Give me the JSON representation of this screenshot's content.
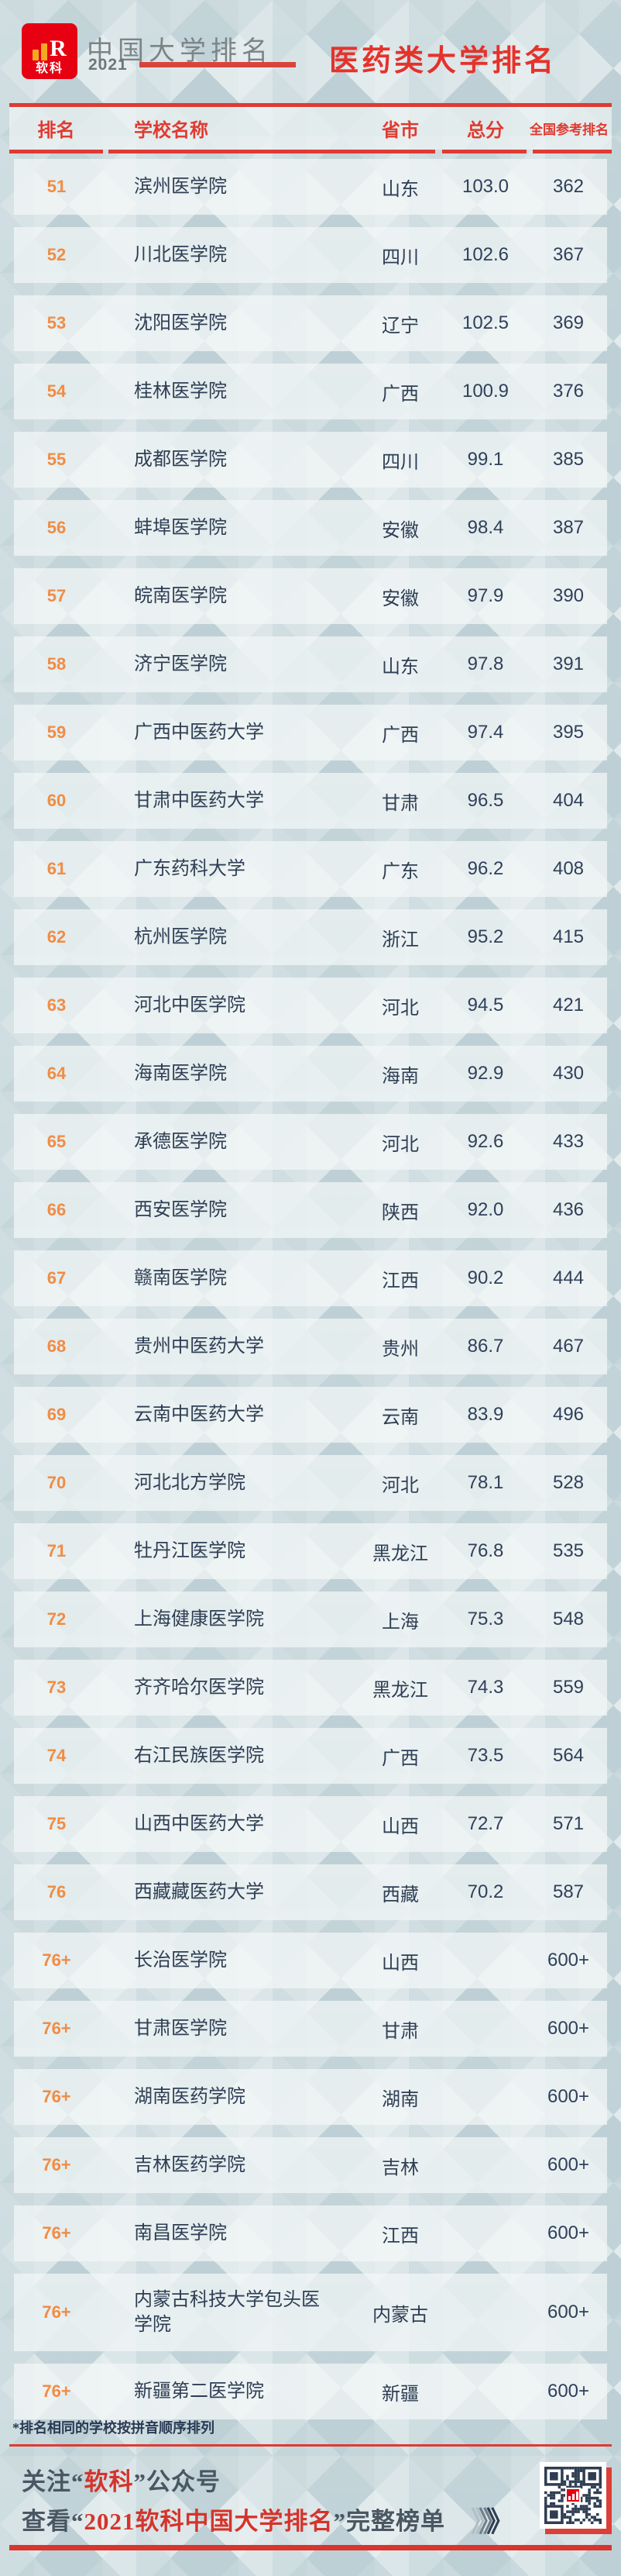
{
  "brand": {
    "logo_text": "软科",
    "logo_r": "R",
    "title": "中国大学排名",
    "year": "2021"
  },
  "page_title": "医药类大学排名",
  "table": {
    "headers": {
      "rank": "排名",
      "school": "学校名称",
      "province": "省市",
      "score": "总分",
      "national_rank": "全国参考排名"
    },
    "rows": [
      {
        "rank": "51",
        "school": "滨州医学院",
        "province": "山东",
        "score": "103.0",
        "national_rank": "362"
      },
      {
        "rank": "52",
        "school": "川北医学院",
        "province": "四川",
        "score": "102.6",
        "national_rank": "367"
      },
      {
        "rank": "53",
        "school": "沈阳医学院",
        "province": "辽宁",
        "score": "102.5",
        "national_rank": "369"
      },
      {
        "rank": "54",
        "school": "桂林医学院",
        "province": "广西",
        "score": "100.9",
        "national_rank": "376"
      },
      {
        "rank": "55",
        "school": "成都医学院",
        "province": "四川",
        "score": "99.1",
        "national_rank": "385"
      },
      {
        "rank": "56",
        "school": "蚌埠医学院",
        "province": "安徽",
        "score": "98.4",
        "national_rank": "387"
      },
      {
        "rank": "57",
        "school": "皖南医学院",
        "province": "安徽",
        "score": "97.9",
        "national_rank": "390"
      },
      {
        "rank": "58",
        "school": "济宁医学院",
        "province": "山东",
        "score": "97.8",
        "national_rank": "391"
      },
      {
        "rank": "59",
        "school": "广西中医药大学",
        "province": "广西",
        "score": "97.4",
        "national_rank": "395"
      },
      {
        "rank": "60",
        "school": "甘肃中医药大学",
        "province": "甘肃",
        "score": "96.5",
        "national_rank": "404"
      },
      {
        "rank": "61",
        "school": "广东药科大学",
        "province": "广东",
        "score": "96.2",
        "national_rank": "408"
      },
      {
        "rank": "62",
        "school": "杭州医学院",
        "province": "浙江",
        "score": "95.2",
        "national_rank": "415"
      },
      {
        "rank": "63",
        "school": "河北中医学院",
        "province": "河北",
        "score": "94.5",
        "national_rank": "421"
      },
      {
        "rank": "64",
        "school": "海南医学院",
        "province": "海南",
        "score": "92.9",
        "national_rank": "430"
      },
      {
        "rank": "65",
        "school": "承德医学院",
        "province": "河北",
        "score": "92.6",
        "national_rank": "433"
      },
      {
        "rank": "66",
        "school": "西安医学院",
        "province": "陕西",
        "score": "92.0",
        "national_rank": "436"
      },
      {
        "rank": "67",
        "school": "赣南医学院",
        "province": "江西",
        "score": "90.2",
        "national_rank": "444"
      },
      {
        "rank": "68",
        "school": "贵州中医药大学",
        "province": "贵州",
        "score": "86.7",
        "national_rank": "467"
      },
      {
        "rank": "69",
        "school": "云南中医药大学",
        "province": "云南",
        "score": "83.9",
        "national_rank": "496"
      },
      {
        "rank": "70",
        "school": "河北北方学院",
        "province": "河北",
        "score": "78.1",
        "national_rank": "528"
      },
      {
        "rank": "71",
        "school": "牡丹江医学院",
        "province": "黑龙江",
        "score": "76.8",
        "national_rank": "535"
      },
      {
        "rank": "72",
        "school": "上海健康医学院",
        "province": "上海",
        "score": "75.3",
        "national_rank": "548"
      },
      {
        "rank": "73",
        "school": "齐齐哈尔医学院",
        "province": "黑龙江",
        "score": "74.3",
        "national_rank": "559"
      },
      {
        "rank": "74",
        "school": "右江民族医学院",
        "province": "广西",
        "score": "73.5",
        "national_rank": "564"
      },
      {
        "rank": "75",
        "school": "山西中医药大学",
        "province": "山西",
        "score": "72.7",
        "national_rank": "571"
      },
      {
        "rank": "76",
        "school": "西藏藏医药大学",
        "province": "西藏",
        "score": "70.2",
        "national_rank": "587"
      },
      {
        "rank": "76+",
        "school": "长治医学院",
        "province": "山西",
        "score": "",
        "national_rank": "600+"
      },
      {
        "rank": "76+",
        "school": "甘肃医学院",
        "province": "甘肃",
        "score": "",
        "national_rank": "600+"
      },
      {
        "rank": "76+",
        "school": "湖南医药学院",
        "province": "湖南",
        "score": "",
        "national_rank": "600+"
      },
      {
        "rank": "76+",
        "school": "吉林医药学院",
        "province": "吉林",
        "score": "",
        "national_rank": "600+"
      },
      {
        "rank": "76+",
        "school": "南昌医学院",
        "province": "江西",
        "score": "",
        "national_rank": "600+"
      },
      {
        "rank": "76+",
        "school": "内蒙古科技大学包头医学院",
        "province": "内蒙古",
        "score": "",
        "national_rank": "600+"
      },
      {
        "rank": "76+",
        "school": "新疆第二医学院",
        "province": "新疆",
        "score": "",
        "national_rank": "600+"
      }
    ]
  },
  "footnote": "*排名相同的学校按拼音顺序排列",
  "footer": {
    "line1_prefix": "关注“",
    "line1_highlight": "软科",
    "line1_suffix": "”公众号",
    "line2_prefix": "查看“",
    "line2_highlight": "2021软科中国大学排名",
    "line2_suffix": "”完整榜单",
    "arrow_glyph": "》"
  },
  "colors": {
    "accent_red": "#dd3b33",
    "header_text_red": "#e03a31",
    "title_red": "#e5322b",
    "rank_orange": "#f18c43",
    "text_navy": "#2e3e54",
    "logo_red": "#e60012",
    "footer_dark": "#4a5763",
    "footer_red": "#d4342c"
  }
}
